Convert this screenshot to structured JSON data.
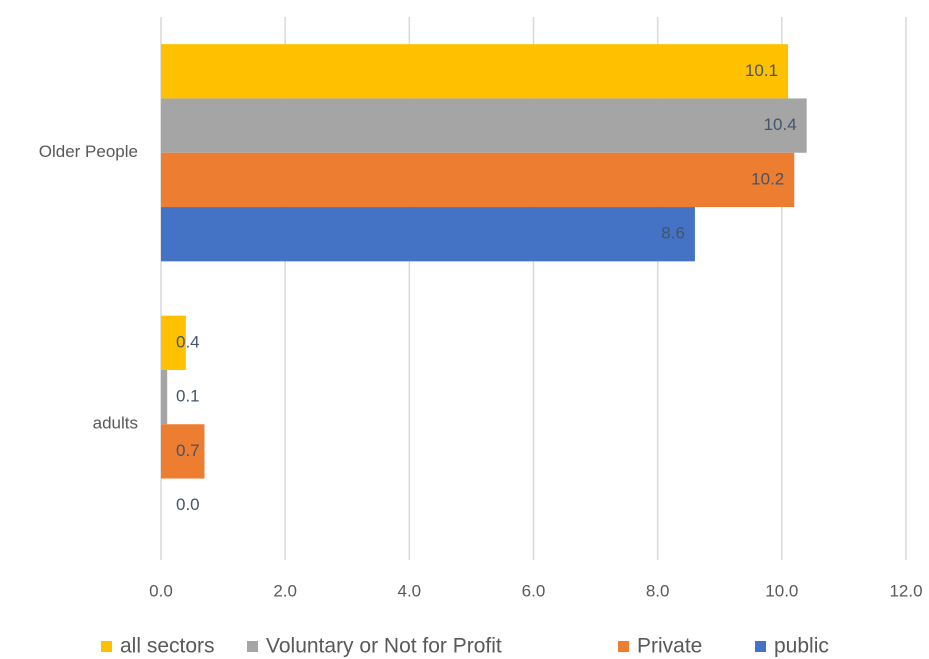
{
  "chart_data": {
    "type": "bar",
    "orientation": "horizontal",
    "categories": [
      "Older People",
      "adults"
    ],
    "series": [
      {
        "name": "all sectors",
        "color": "#FFC000",
        "values": [
          10.1,
          0.4
        ],
        "value_labels": [
          "10.1",
          "0.4"
        ]
      },
      {
        "name": "Voluntary or Not for Profit",
        "color": "#A5A5A5",
        "values": [
          10.4,
          0.1
        ],
        "value_labels": [
          "10.4",
          "0.1"
        ]
      },
      {
        "name": "Private",
        "color": "#ED7D31",
        "values": [
          10.2,
          0.7
        ],
        "value_labels": [
          "10.2",
          "0.7"
        ]
      },
      {
        "name": "public",
        "color": "#4472C4",
        "values": [
          8.6,
          0.0
        ],
        "value_labels": [
          "8.6",
          "0.0"
        ]
      }
    ],
    "xlim": [
      0,
      12
    ],
    "xticks": [
      {
        "value": 0,
        "label": "0.0"
      },
      {
        "value": 2,
        "label": "2.0"
      },
      {
        "value": 4,
        "label": "4.0"
      },
      {
        "value": 6,
        "label": "6.0"
      },
      {
        "value": 8,
        "label": "8.0"
      },
      {
        "value": 10,
        "label": "10.0"
      },
      {
        "value": 12,
        "label": "12.0"
      }
    ],
    "grid": true,
    "legend": "bottom"
  }
}
